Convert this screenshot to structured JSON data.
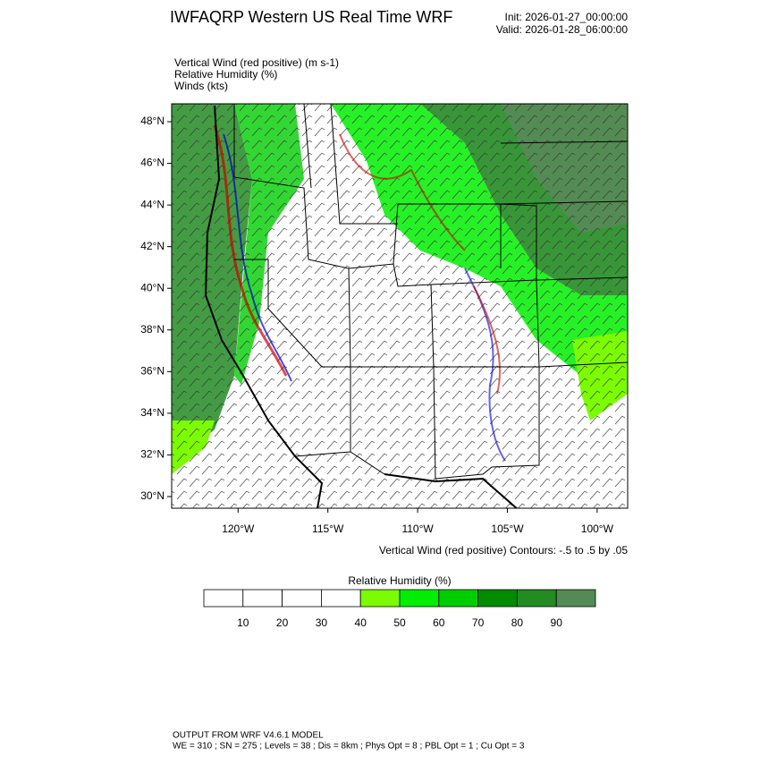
{
  "header": {
    "title": "IWFAQRP Western US Real Time WRF",
    "init": "Init: 2026-01-27_00:00:00",
    "valid": "Valid: 2026-01-28_06:00:00"
  },
  "fields": [
    "Vertical Wind (red positive)   (m s-1)",
    "Relative Humidity   (%)",
    "Winds   (kts)"
  ],
  "map": {
    "xlim": [
      -123.7,
      -98.3
    ],
    "ylim": [
      29.44,
      48.86
    ],
    "yticks": [
      {
        "value": 48,
        "label": "48°N"
      },
      {
        "value": 46,
        "label": "46°N"
      },
      {
        "value": 44,
        "label": "44°N"
      },
      {
        "value": 42,
        "label": "42°N"
      },
      {
        "value": 40,
        "label": "40°N"
      },
      {
        "value": 38,
        "label": "38°N"
      },
      {
        "value": 36,
        "label": "36°N"
      },
      {
        "value": 34,
        "label": "34°N"
      },
      {
        "value": 32,
        "label": "32°N"
      },
      {
        "value": 30,
        "label": "30°N"
      }
    ],
    "xticks": [
      {
        "value": -120,
        "label": "120°W"
      },
      {
        "value": -115,
        "label": "115°W"
      },
      {
        "value": -110,
        "label": "110°W"
      },
      {
        "value": -105,
        "label": "105°W"
      },
      {
        "value": -100,
        "label": "100°W"
      }
    ],
    "contour_note": "Vertical Wind (red positive) Contours: -.5 to .5 by .05"
  },
  "colorbar": {
    "title": "Relative Humidity  (%)",
    "levels": [
      10,
      20,
      30,
      40,
      50,
      60,
      70,
      80,
      90
    ],
    "colors": [
      "#ffffff",
      "#ffffff",
      "#ffffff",
      "#ffffff",
      "#7cfc00",
      "#00ee00",
      "#00cd00",
      "#008b00",
      "#228b22",
      "#548b54"
    ]
  },
  "footer": {
    "line1": "OUTPUT FROM WRF V4.6.1 MODEL",
    "line2": "WE = 310 ; SN = 275 ; Levels = 38 ; Dis = 8km ; Phys Opt = 8 ; PBL Opt = 1 ; Cu Opt = 3"
  }
}
